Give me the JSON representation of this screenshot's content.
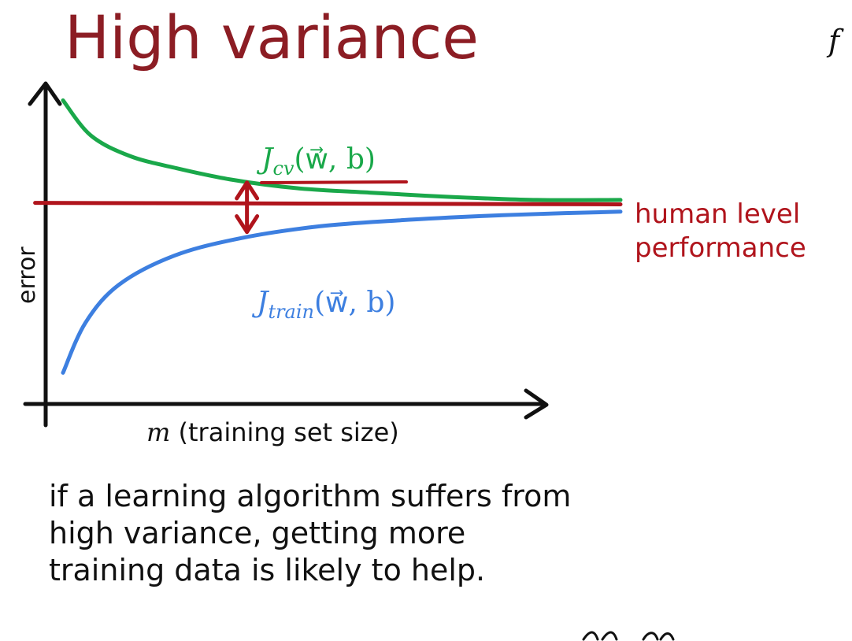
{
  "slide": {
    "title": "High variance",
    "corner_glyph": "f",
    "caption": "if a learning algorithm suffers from high variance, getting more training data is likely to help."
  },
  "chart_data": {
    "type": "line",
    "xlabel_var": "m",
    "xlabel_rest": " (training set size)",
    "ylabel": "error",
    "grid": false,
    "legend": "none",
    "axes_ticks": "none",
    "series": [
      {
        "key": "cv",
        "label_main": "J",
        "label_sub": "cv",
        "label_args": "(w⃗, b)",
        "color": "#1aa84a",
        "trend": "decreasing",
        "points": [
          [
            0.0,
            0.98
          ],
          [
            0.05,
            0.86
          ],
          [
            0.12,
            0.79
          ],
          [
            0.2,
            0.75
          ],
          [
            0.3,
            0.71
          ],
          [
            0.42,
            0.68
          ],
          [
            0.55,
            0.665
          ],
          [
            0.7,
            0.65
          ],
          [
            0.85,
            0.64
          ],
          [
            1.0,
            0.64
          ]
        ]
      },
      {
        "key": "train",
        "label_main": "J",
        "label_sub": "train",
        "label_args": "(w⃗, b)",
        "color": "#3d7fe0",
        "trend": "increasing",
        "points": [
          [
            0.0,
            0.05
          ],
          [
            0.04,
            0.22
          ],
          [
            0.1,
            0.35
          ],
          [
            0.2,
            0.45
          ],
          [
            0.32,
            0.51
          ],
          [
            0.46,
            0.55
          ],
          [
            0.6,
            0.57
          ],
          [
            0.75,
            0.585
          ],
          [
            0.9,
            0.595
          ],
          [
            1.0,
            0.6
          ]
        ]
      },
      {
        "key": "human",
        "label": "human level performance",
        "label_line1": "human level",
        "label_line2": "performance",
        "color": "#b0141c",
        "trend": "constant",
        "points": [
          [
            -0.05,
            0.63
          ],
          [
            1.0,
            0.625
          ]
        ]
      }
    ],
    "annotations": [
      {
        "type": "gap-double-arrow",
        "color": "#b0141c",
        "x": 0.33,
        "from": 0.71,
        "to": 0.52
      }
    ],
    "xlim": [
      0,
      1
    ],
    "ylim": [
      0,
      1
    ]
  },
  "colors": {
    "title": "#8c1d24",
    "axis": "#111111",
    "annotation_red": "#b0141c"
  }
}
